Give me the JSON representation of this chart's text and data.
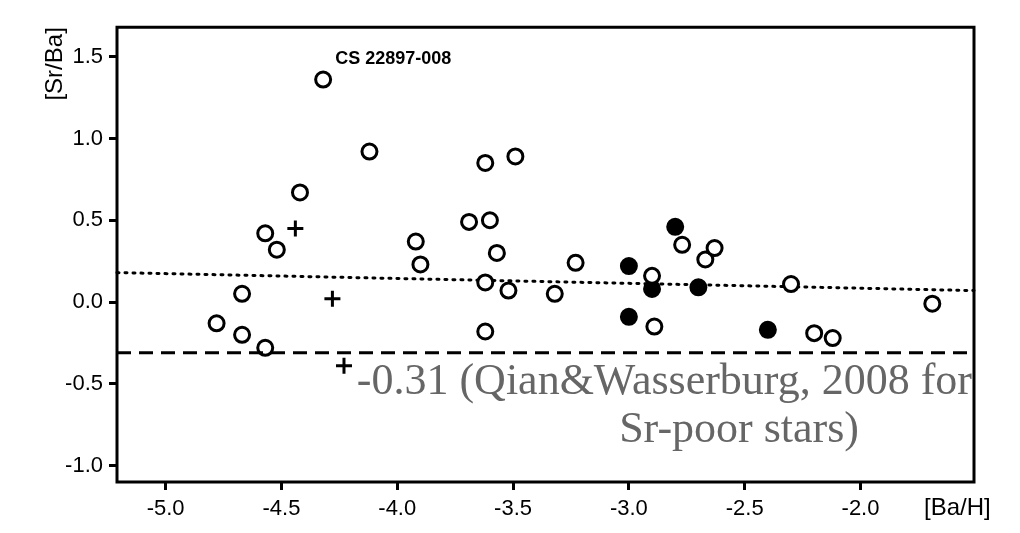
{
  "chart_data": {
    "type": "scatter",
    "xlabel": "[Ba/H]",
    "ylabel": "[Sr/Ba]",
    "xlim": [
      -5.21,
      -1.51
    ],
    "xticks": [
      {
        "value": -5,
        "label": "-5.0"
      },
      {
        "value": -4.5,
        "label": "-4.5"
      },
      {
        "value": -4,
        "label": "-4.0"
      },
      {
        "value": -3.5,
        "label": "-3.5"
      },
      {
        "value": -3,
        "label": "-3.0"
      },
      {
        "value": -2.5,
        "label": "-2.5"
      },
      {
        "value": -2,
        "label": "-2.0"
      }
    ],
    "ylim": [
      -1.1,
      1.68
    ],
    "yticks": [
      {
        "value": -1,
        "label": "-1.0"
      },
      {
        "value": -0.5,
        "label": "-0.5"
      },
      {
        "value": 0,
        "label": "0.0"
      },
      {
        "value": 0.5,
        "label": "0.5"
      },
      {
        "value": 1,
        "label": "1.0"
      },
      {
        "value": 1.5,
        "label": "1.5"
      }
    ],
    "grid": false,
    "legend": false,
    "series": [
      {
        "color": "#000000",
        "marker": "circle",
        "x": [
          -4.32,
          -4.12,
          -4.42,
          -4.57,
          -4.52,
          -4.67,
          -4.78,
          -4.67,
          -4.57,
          -3.92,
          -3.9,
          -3.62,
          -3.49,
          -3.69,
          -3.6,
          -3.57,
          -3.62,
          -3.52,
          -3.62,
          -3.32,
          -3.23,
          -2.9,
          -2.89,
          -2.77,
          -2.67,
          -2.63,
          -2.3,
          -2.2,
          -2.12,
          -1.69
        ],
        "values": [
          1.36,
          0.92,
          0.67,
          0.42,
          0.32,
          0.05,
          -0.13,
          -0.2,
          -0.28,
          0.37,
          0.23,
          0.85,
          0.89,
          0.49,
          0.5,
          0.3,
          0.12,
          0.07,
          -0.18,
          0.05,
          0.24,
          0.16,
          -0.15,
          0.35,
          0.26,
          0.33,
          0.11,
          -0.19,
          -0.22,
          -0.01
        ]
      },
      {
        "color": "#000000",
        "marker": "circle",
        "x": [
          -3.0,
          -2.9,
          -3.0,
          -2.8,
          -2.7,
          -2.4
        ],
        "values": [
          0.22,
          0.08,
          -0.09,
          0.46,
          0.09,
          -0.17
        ]
      },
      {
        "color": "#000000",
        "marker": "cross",
        "x": [
          -4.44,
          -4.28,
          -4.23
        ],
        "values": [
          0.45,
          0.02,
          -0.39
        ]
      },
      {
        "type": "line",
        "color": "#000000",
        "line_style": "dotted",
        "marker": "none",
        "x": [
          -5.21,
          -1.51
        ],
        "values": [
          0.18,
          0.07
        ]
      }
    ],
    "ref_lines": [
      {
        "axis": "y",
        "value": -0.31,
        "line_style": "dashed",
        "color": "#000000",
        "label": "-0.31 (Qian&Wasserburg, 2008 for Sr-poor stars)"
      }
    ],
    "annotations": [
      {
        "text": "CS 22897-008",
        "x": -4.32,
        "y": 1.36
      }
    ]
  }
}
